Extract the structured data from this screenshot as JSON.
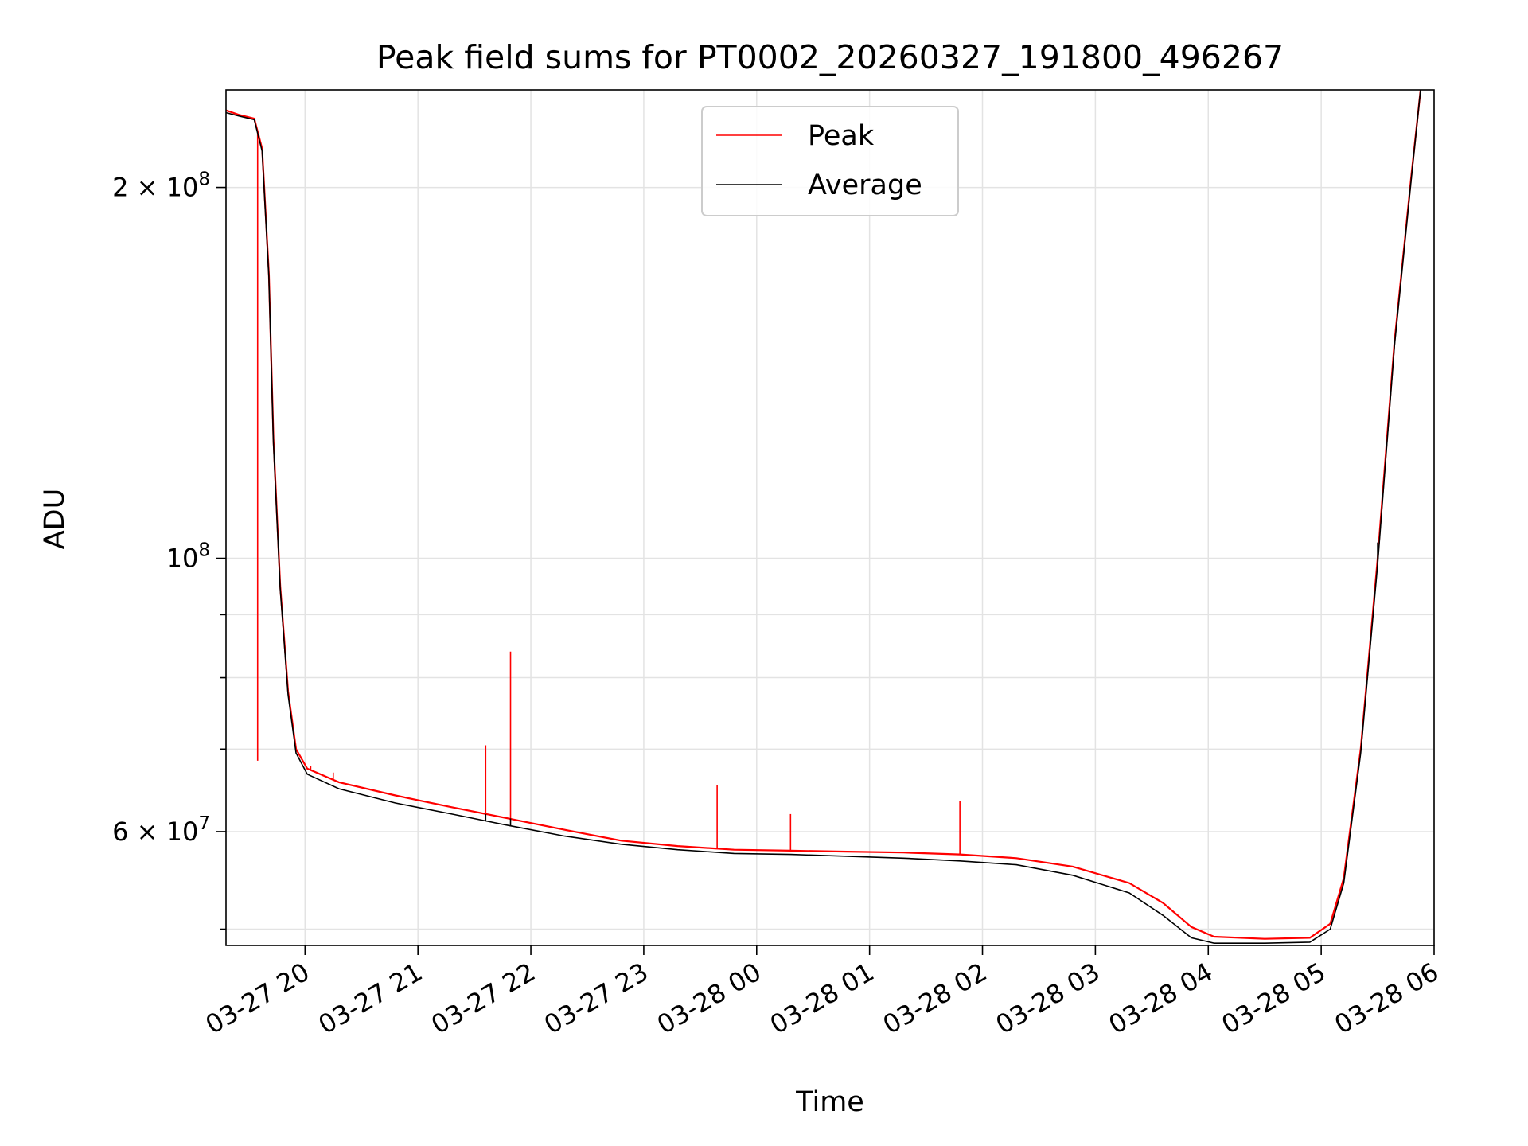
{
  "chart_data": {
    "type": "line",
    "title": "Peak field sums for PT0002_20260327_191800_496267",
    "xlabel": "Time",
    "ylabel": "ADU",
    "yscale": "log",
    "grid": true,
    "legend_position": "upper-center",
    "x_unit": "hours since 03-27 19:18",
    "xlim": [
      0,
      10.7
    ],
    "ylim": [
      48500000,
      240000000
    ],
    "x_ticks": [
      {
        "value": 0.7,
        "label": "03-27 20"
      },
      {
        "value": 1.7,
        "label": "03-27 21"
      },
      {
        "value": 2.7,
        "label": "03-27 22"
      },
      {
        "value": 3.7,
        "label": "03-27 23"
      },
      {
        "value": 4.7,
        "label": "03-28 00"
      },
      {
        "value": 5.7,
        "label": "03-28 01"
      },
      {
        "value": 6.7,
        "label": "03-28 02"
      },
      {
        "value": 7.7,
        "label": "03-28 03"
      },
      {
        "value": 8.7,
        "label": "03-28 04"
      },
      {
        "value": 9.7,
        "label": "03-28 05"
      },
      {
        "value": 10.7,
        "label": "03-28 06"
      }
    ],
    "y_major_ticks": [
      {
        "value": 60000000,
        "base": "6 × 10",
        "exp": "7"
      },
      {
        "value": 100000000,
        "base": "10",
        "exp": "8"
      },
      {
        "value": 200000000,
        "base": "2 × 10",
        "exp": "8"
      }
    ],
    "y_minor_ticks": [
      50000000,
      70000000,
      80000000,
      90000000
    ],
    "series": [
      {
        "name": "Peak",
        "color": "#ff0000",
        "points": [
          [
            0,
            231000000
          ],
          [
            0.12,
            229000000
          ],
          [
            0.25,
            227500000
          ],
          [
            0.32,
            215000000
          ],
          [
            0.38,
            170000000
          ],
          [
            0.42,
            125000000
          ],
          [
            0.48,
            95000000
          ],
          [
            0.55,
            78000000
          ],
          [
            0.62,
            70000000
          ],
          [
            0.72,
            67500000
          ],
          [
            1.0,
            65800000
          ],
          [
            1.5,
            64200000
          ],
          [
            2.0,
            62800000
          ],
          [
            2.5,
            61500000
          ],
          [
            3.0,
            60200000
          ],
          [
            3.5,
            59000000
          ],
          [
            4.0,
            58400000
          ],
          [
            4.5,
            58000000
          ],
          [
            5.0,
            57900000
          ],
          [
            5.5,
            57800000
          ],
          [
            6.0,
            57700000
          ],
          [
            6.5,
            57500000
          ],
          [
            7.0,
            57100000
          ],
          [
            7.5,
            56200000
          ],
          [
            8.0,
            54500000
          ],
          [
            8.3,
            52500000
          ],
          [
            8.55,
            50200000
          ],
          [
            8.75,
            49300000
          ],
          [
            9.2,
            49100000
          ],
          [
            9.6,
            49200000
          ],
          [
            9.78,
            50500000
          ],
          [
            9.9,
            55000000
          ],
          [
            10.05,
            70000000
          ],
          [
            10.2,
            100000000
          ],
          [
            10.35,
            150000000
          ],
          [
            10.5,
            205000000
          ],
          [
            10.58,
            240000000
          ]
        ],
        "spikes": [
          [
            0.28,
            68500000
          ],
          [
            0.75,
            67800000
          ],
          [
            0.95,
            67000000
          ],
          [
            2.3,
            70500000
          ],
          [
            2.52,
            84000000
          ],
          [
            4.35,
            65500000
          ],
          [
            5.0,
            62000000
          ],
          [
            6.5,
            63500000
          ]
        ]
      },
      {
        "name": "Average",
        "color": "#000000",
        "points": [
          [
            0,
            230000000
          ],
          [
            0.12,
            228500000
          ],
          [
            0.25,
            227000000
          ],
          [
            0.32,
            214000000
          ],
          [
            0.38,
            169000000
          ],
          [
            0.42,
            124000000
          ],
          [
            0.48,
            94500000
          ],
          [
            0.55,
            77500000
          ],
          [
            0.62,
            69500000
          ],
          [
            0.72,
            66800000
          ],
          [
            1.0,
            65000000
          ],
          [
            1.5,
            63300000
          ],
          [
            2.0,
            62000000
          ],
          [
            2.5,
            60700000
          ],
          [
            3.0,
            59500000
          ],
          [
            3.5,
            58600000
          ],
          [
            4.0,
            58000000
          ],
          [
            4.5,
            57600000
          ],
          [
            5.0,
            57500000
          ],
          [
            5.5,
            57300000
          ],
          [
            6.0,
            57100000
          ],
          [
            6.5,
            56800000
          ],
          [
            7.0,
            56400000
          ],
          [
            7.5,
            55300000
          ],
          [
            8.0,
            53500000
          ],
          [
            8.3,
            51300000
          ],
          [
            8.55,
            49200000
          ],
          [
            8.75,
            48700000
          ],
          [
            9.2,
            48700000
          ],
          [
            9.6,
            48800000
          ],
          [
            9.78,
            50000000
          ],
          [
            9.9,
            54500000
          ],
          [
            10.05,
            69500000
          ],
          [
            10.2,
            99000000
          ],
          [
            10.35,
            149000000
          ],
          [
            10.5,
            204000000
          ],
          [
            10.58,
            240000000
          ]
        ],
        "spikes": [
          [
            2.3,
            62000000
          ],
          [
            2.52,
            61500000
          ],
          [
            10.2,
            103000000
          ]
        ]
      }
    ]
  }
}
